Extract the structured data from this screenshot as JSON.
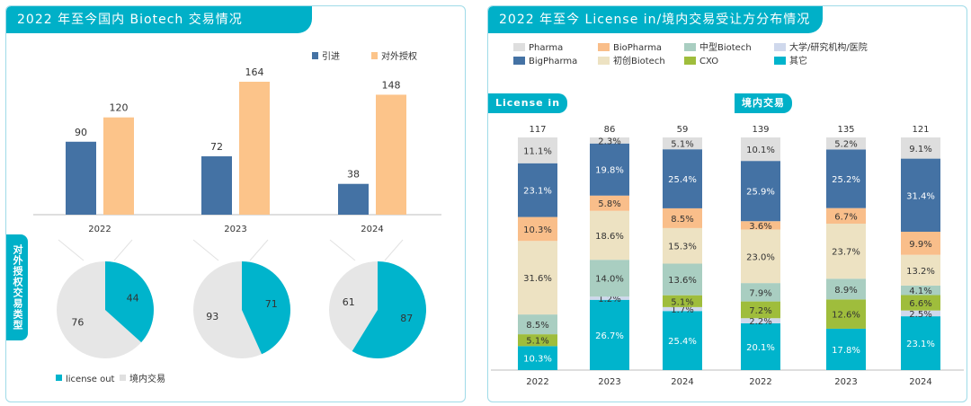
{
  "left_panel": {
    "title": "2022 年至今国内 Biotech 交易情况",
    "side_tab": "对外授权交易类型",
    "bar_legend": [
      "引进",
      "对外授权"
    ],
    "pie_legend": [
      "license out",
      "境内交易"
    ]
  },
  "right_panel": {
    "title": "2022 年至今 License in/境内交易受让方分布情况",
    "group_labels": [
      "License in",
      "境内交易"
    ],
    "legend": [
      "Pharma",
      "BioPharma",
      "中型Biotech",
      "大学/研究机构/医院",
      "BigPharma",
      "初创Biotech",
      "CXO",
      "其它"
    ]
  },
  "colors": {
    "accent": "#00b0c8",
    "in": "#4472a4",
    "out": "#fcc48a",
    "Pharma": "#dedede",
    "BioPharma": "#f9be8a",
    "中型Biotech": "#a9cec1",
    "大学/研究机构/医院": "#cfd8ec",
    "BigPharma": "#4472a4",
    "初创Biotech": "#ede2c2",
    "CXO": "#9fbd3c",
    "其它": "#00b4cc"
  },
  "chart_data": [
    {
      "type": "bar",
      "categories": [
        "2022",
        "2023",
        "2024"
      ],
      "series": [
        {
          "name": "引进",
          "values": [
            90,
            72,
            38
          ]
        },
        {
          "name": "对外授权",
          "values": [
            120,
            164,
            148
          ]
        }
      ],
      "legend_position": "top-right"
    },
    {
      "type": "pie",
      "categories": [
        "2022",
        "2023",
        "2024"
      ],
      "series": [
        {
          "name": "license out",
          "values": [
            44,
            71,
            87
          ]
        },
        {
          "name": "境内交易",
          "values": [
            76,
            93,
            61
          ]
        }
      ],
      "legend_position": "bottom"
    },
    {
      "type": "bar",
      "stacked": true,
      "title": "License in",
      "categories": [
        "2022",
        "2023",
        "2024"
      ],
      "totals": [
        117,
        86,
        59
      ],
      "segments": [
        {
          "name": "其它",
          "values": [
            10.3,
            26.7,
            25.4
          ]
        },
        {
          "name": "CXO",
          "values": [
            5.1,
            0,
            5.1
          ]
        },
        {
          "name": "中型Biotech",
          "values": [
            8.5,
            14.0,
            13.6
          ]
        },
        {
          "name": "初创Biotech",
          "values": [
            31.6,
            18.6,
            15.3
          ]
        },
        {
          "name": "BioPharma",
          "values": [
            10.3,
            5.8,
            8.5
          ]
        },
        {
          "name": "BigPharma",
          "values": [
            23.1,
            19.8,
            25.4
          ]
        },
        {
          "name": "Pharma",
          "values": [
            11.1,
            2.3,
            5.1
          ]
        }
      ],
      "stack_order": [
        [
          "其它",
          "CXO",
          "中型Biotech",
          "初创Biotech",
          "BioPharma",
          "BigPharma",
          "Pharma"
        ],
        [
          "其它",
          "大学/研究机构/医院",
          "CXO",
          "中型Biotech",
          "初创Biotech",
          "BioPharma",
          "BigPharma",
          "Pharma"
        ],
        [
          "其它",
          "大学/研究机构/医院",
          "CXO",
          "中型Biotech",
          "初创Biotech",
          "BioPharma",
          "BigPharma",
          "Pharma"
        ]
      ],
      "extra": [
        {
          "name": "大学/研究机构/医院",
          "values": [
            0,
            1.2,
            1.7
          ]
        }
      ],
      "unit": "%"
    },
    {
      "type": "bar",
      "stacked": true,
      "title": "境内交易",
      "categories": [
        "2022",
        "2023",
        "2024"
      ],
      "totals": [
        139,
        135,
        121
      ],
      "segments": [
        {
          "name": "其它",
          "values": [
            20.1,
            17.8,
            23.1
          ]
        },
        {
          "name": "大学/研究机构/医院",
          "values": [
            2.2,
            0,
            2.5
          ]
        },
        {
          "name": "CXO",
          "values": [
            7.2,
            12.6,
            6.6
          ]
        },
        {
          "name": "中型Biotech",
          "values": [
            7.9,
            8.9,
            4.1
          ]
        },
        {
          "name": "初创Biotech",
          "values": [
            23.0,
            23.7,
            13.2
          ]
        },
        {
          "name": "BioPharma",
          "values": [
            3.6,
            6.7,
            9.9
          ]
        },
        {
          "name": "BigPharma",
          "values": [
            25.9,
            25.2,
            31.4
          ]
        },
        {
          "name": "Pharma",
          "values": [
            10.1,
            5.2,
            9.1
          ]
        }
      ],
      "unit": "%"
    }
  ]
}
